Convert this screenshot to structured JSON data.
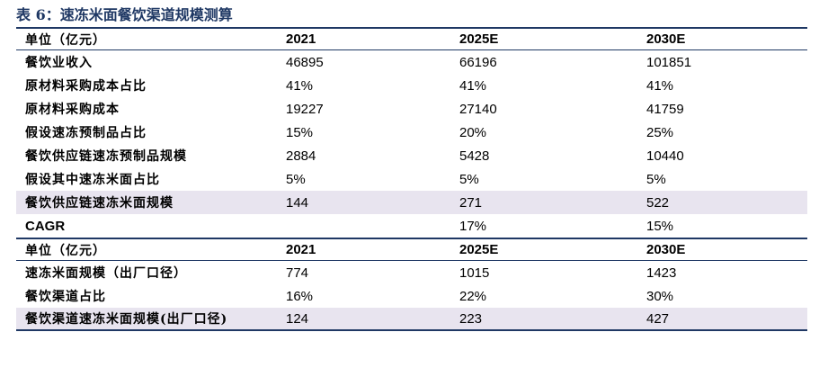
{
  "title": "表 6：速冻米面餐饮渠道规模测算",
  "section1": {
    "header": [
      "单位（亿元）",
      "2021",
      "2025E",
      "2030E"
    ],
    "rows": [
      [
        "餐饮业收入",
        "46895",
        "66196",
        "101851"
      ],
      [
        "原材料采购成本占比",
        "41%",
        "41%",
        "41%"
      ],
      [
        "原材料采购成本",
        "19227",
        "27140",
        "41759"
      ],
      [
        "假设速冻预制品占比",
        "15%",
        "20%",
        "25%"
      ],
      [
        "餐饮供应链速冻预制品规模",
        "2884",
        "5428",
        "10440"
      ],
      [
        "假设其中速冻米面占比",
        "5%",
        "5%",
        "5%"
      ],
      [
        "餐饮供应链速冻米面规模",
        "144",
        "271",
        "522"
      ],
      [
        "CAGR",
        "",
        "17%",
        "15%"
      ]
    ]
  },
  "section2": {
    "header": [
      "单位（亿元）",
      "2021",
      "2025E",
      "2030E"
    ],
    "rows": [
      [
        "速冻米面规模（出厂口径）",
        "774",
        "1015",
        "1423"
      ],
      [
        "餐饮渠道占比",
        "16%",
        "22%",
        "30%"
      ],
      [
        "餐饮渠道速冻米面规模(出厂口径)",
        "124",
        "223",
        "427"
      ]
    ]
  },
  "colors": {
    "title": "#1f3864",
    "rule": "#1f3864",
    "highlight": "#e8e4ef"
  }
}
